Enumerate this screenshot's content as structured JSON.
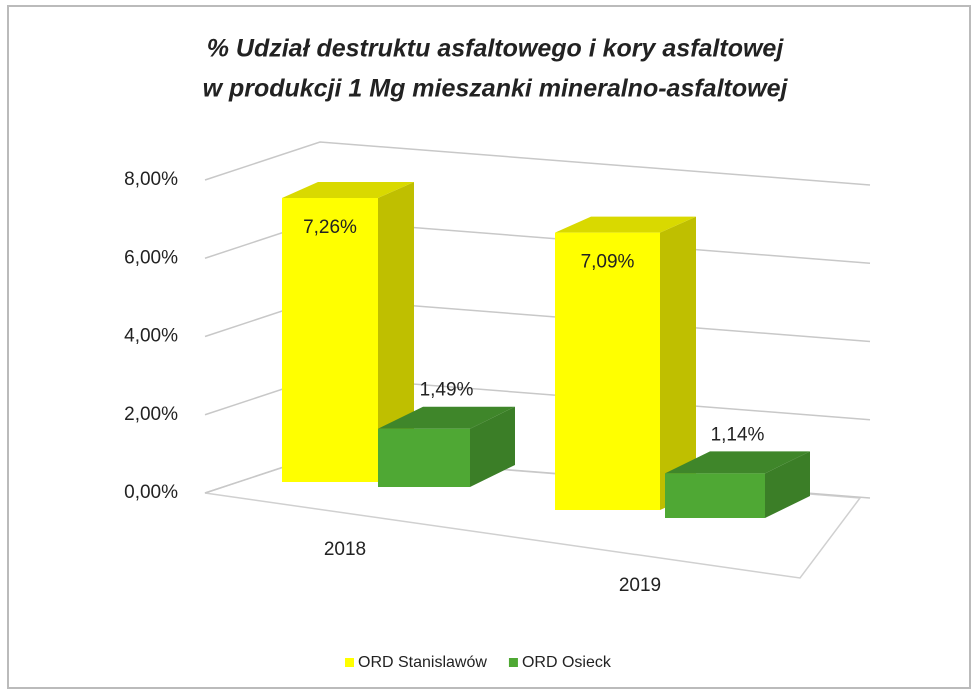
{
  "chart_data": {
    "type": "bar3d",
    "title": [
      "%  Udział destruktu asfaltowego i kory asfaltowej",
      "w produkcji 1 Mg mieszanki mineralno-asfaltowej"
    ],
    "categories": [
      "2018",
      "2019"
    ],
    "series": [
      {
        "name": "ORD Stanislawów",
        "color": "#ffff00",
        "values": [
          7.26,
          7.09
        ],
        "value_labels": [
          "7,26%",
          "7,09%"
        ]
      },
      {
        "name": "ORD Osieck",
        "color": "#4fa834",
        "values": [
          1.49,
          1.14
        ],
        "value_labels": [
          "1,49%",
          "1,14%"
        ]
      }
    ],
    "ylim": [
      0,
      8
    ],
    "yticks": [
      {
        "value": 0,
        "label": "0,00%"
      },
      {
        "value": 2,
        "label": "2,00%"
      },
      {
        "value": 4,
        "label": "4,00%"
      },
      {
        "value": 6,
        "label": "6,00%"
      },
      {
        "value": 8,
        "label": "8,00%"
      }
    ],
    "grid": true,
    "legend": "bottom"
  }
}
